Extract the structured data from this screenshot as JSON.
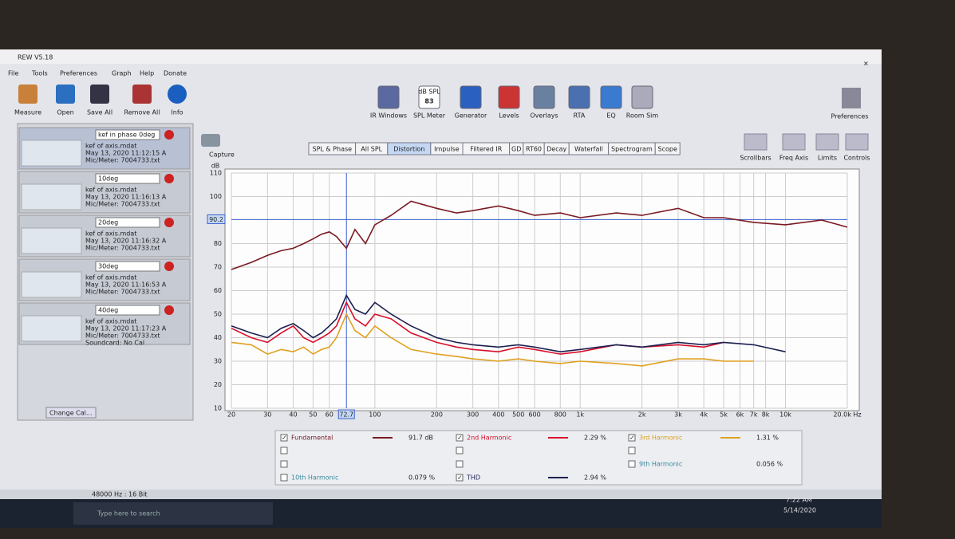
{
  "window": {
    "title": "REW V5.18",
    "menu": [
      "File",
      "Tools",
      "Preferences",
      "Graph",
      "Help",
      "Donate"
    ]
  },
  "toolbar": {
    "left": [
      "Measure",
      "Open",
      "Save All",
      "Remove All",
      "Info"
    ],
    "center": [
      "IR Windows",
      "SPL Meter",
      "Generator",
      "Levels",
      "Overlays",
      "RTA",
      "EQ",
      "Room Sim"
    ],
    "spl_meter": {
      "unit": "dB SPL",
      "reading": "83"
    },
    "right": [
      "Preferences"
    ]
  },
  "capture": "Capture",
  "measurements": {
    "button": "Change Cal...",
    "items": [
      {
        "name": "kef in phase 0deg",
        "file": "kef of axis.mdat",
        "date": "May 13, 2020 11:12:15 A",
        "mic": "Mic/Meter: 7004733.txt"
      },
      {
        "name": "10deg",
        "file": "kef of axis.mdat",
        "date": "May 13, 2020 11:16:13 A",
        "mic": "Mic/Meter: 7004733.txt"
      },
      {
        "name": "20deg",
        "file": "kef of axis.mdat",
        "date": "May 13, 2020 11:16:32 A",
        "mic": "Mic/Meter: 7004733.txt"
      },
      {
        "name": "30deg",
        "file": "kef of axis.mdat",
        "date": "May 13, 2020 11:16:53 A",
        "mic": "Mic/Meter: 7004733.txt"
      },
      {
        "name": "40deg",
        "file": "kef of axis.mdat",
        "date": "May 13, 2020 11:17:23 A",
        "mic": "Mic/Meter: 7004733.txt",
        "cal": "Soundcard: No Cal"
      }
    ]
  },
  "graph_tabs": {
    "tabs": [
      "SPL & Phase",
      "All SPL",
      "Distortion",
      "Impulse",
      "Filtered IR",
      "GD",
      "RT60",
      "Decay",
      "Waterfall",
      "Spectrogram",
      "Scope"
    ],
    "selected": 2
  },
  "graph_tools": [
    "Scrollbars",
    "Freq Axis",
    "Limits",
    "Controls"
  ],
  "chart_data": {
    "type": "line",
    "y_label": "dB",
    "log_x": true,
    "grid": true,
    "x": [
      20,
      25,
      30,
      35,
      40,
      45,
      50,
      55,
      60,
      65,
      72.7,
      80,
      90,
      100,
      120,
      150,
      200,
      250,
      300,
      400,
      500,
      600,
      800,
      1000,
      1500,
      2000,
      3000,
      4000,
      5000,
      7000,
      10000,
      15000,
      20000
    ],
    "xlim": [
      20,
      20000
    ],
    "ylim": [
      10,
      110
    ],
    "xticks": [
      20,
      30,
      40,
      50,
      60,
      100,
      200,
      300,
      400,
      500,
      600,
      800,
      {
        "value": 1000,
        "label": "1k"
      },
      {
        "value": 2000,
        "label": "2k"
      },
      {
        "value": 3000,
        "label": "3k"
      },
      {
        "value": 4000,
        "label": "4k"
      },
      {
        "value": 5000,
        "label": "5k"
      },
      {
        "value": 6000,
        "label": "6k"
      },
      {
        "value": 7000,
        "label": "7k"
      },
      {
        "value": 8000,
        "label": "8k"
      },
      {
        "value": 10000,
        "label": "10k"
      },
      {
        "value": 20000,
        "label": "20.0k Hz"
      }
    ],
    "yticks": [
      10,
      20,
      30,
      40,
      50,
      60,
      70,
      80,
      100,
      110
    ],
    "cursor": {
      "x": 72.7,
      "y": 90.2
    },
    "series": [
      {
        "name": "Fundamental",
        "color": "#7a1a22",
        "reading": "91.7 dB",
        "values": [
          69,
          72,
          75,
          77,
          78,
          80,
          82,
          84,
          85,
          83,
          78,
          86,
          80,
          88,
          92,
          98,
          95,
          93,
          94,
          96,
          94,
          92,
          93,
          91,
          93,
          92,
          95,
          91,
          91,
          89,
          88,
          90,
          87
        ]
      },
      {
        "name": "2nd Harmonic",
        "color": "#d8102a",
        "reading": "2.29 %",
        "values": [
          44,
          40,
          38,
          42,
          45,
          40,
          38,
          40,
          42,
          45,
          55,
          48,
          45,
          50,
          48,
          42,
          38,
          36,
          35,
          34,
          36,
          35,
          33,
          34,
          37,
          36,
          37,
          36,
          38,
          null,
          null,
          null,
          null
        ]
      },
      {
        "name": "3rd Harmonic",
        "color": "#e0a020",
        "reading": "1.31 %",
        "values": [
          38,
          37,
          33,
          35,
          34,
          36,
          33,
          35,
          36,
          40,
          50,
          43,
          40,
          45,
          40,
          35,
          33,
          32,
          31,
          30,
          31,
          30,
          29,
          30,
          29,
          28,
          31,
          31,
          30,
          30,
          null,
          null,
          null
        ]
      },
      {
        "name": "THD",
        "color": "#1c2050",
        "reading": "2.94 %",
        "values": [
          45,
          42,
          40,
          44,
          46,
          43,
          40,
          42,
          45,
          48,
          58,
          52,
          50,
          55,
          50,
          45,
          40,
          38,
          37,
          36,
          37,
          36,
          34,
          35,
          37,
          36,
          38,
          37,
          38,
          37,
          34,
          null,
          null
        ]
      }
    ],
    "other_harmonics": [
      {
        "name": "9th Harmonic",
        "value": "0.056 %"
      },
      {
        "name": "10th Harmonic",
        "value": "0.079 %"
      }
    ]
  },
  "status": "48000 Hz : 16 Bit",
  "taskbar": {
    "search": "Type here to search",
    "time": "7:22 AM",
    "date": "5/14/2020"
  }
}
